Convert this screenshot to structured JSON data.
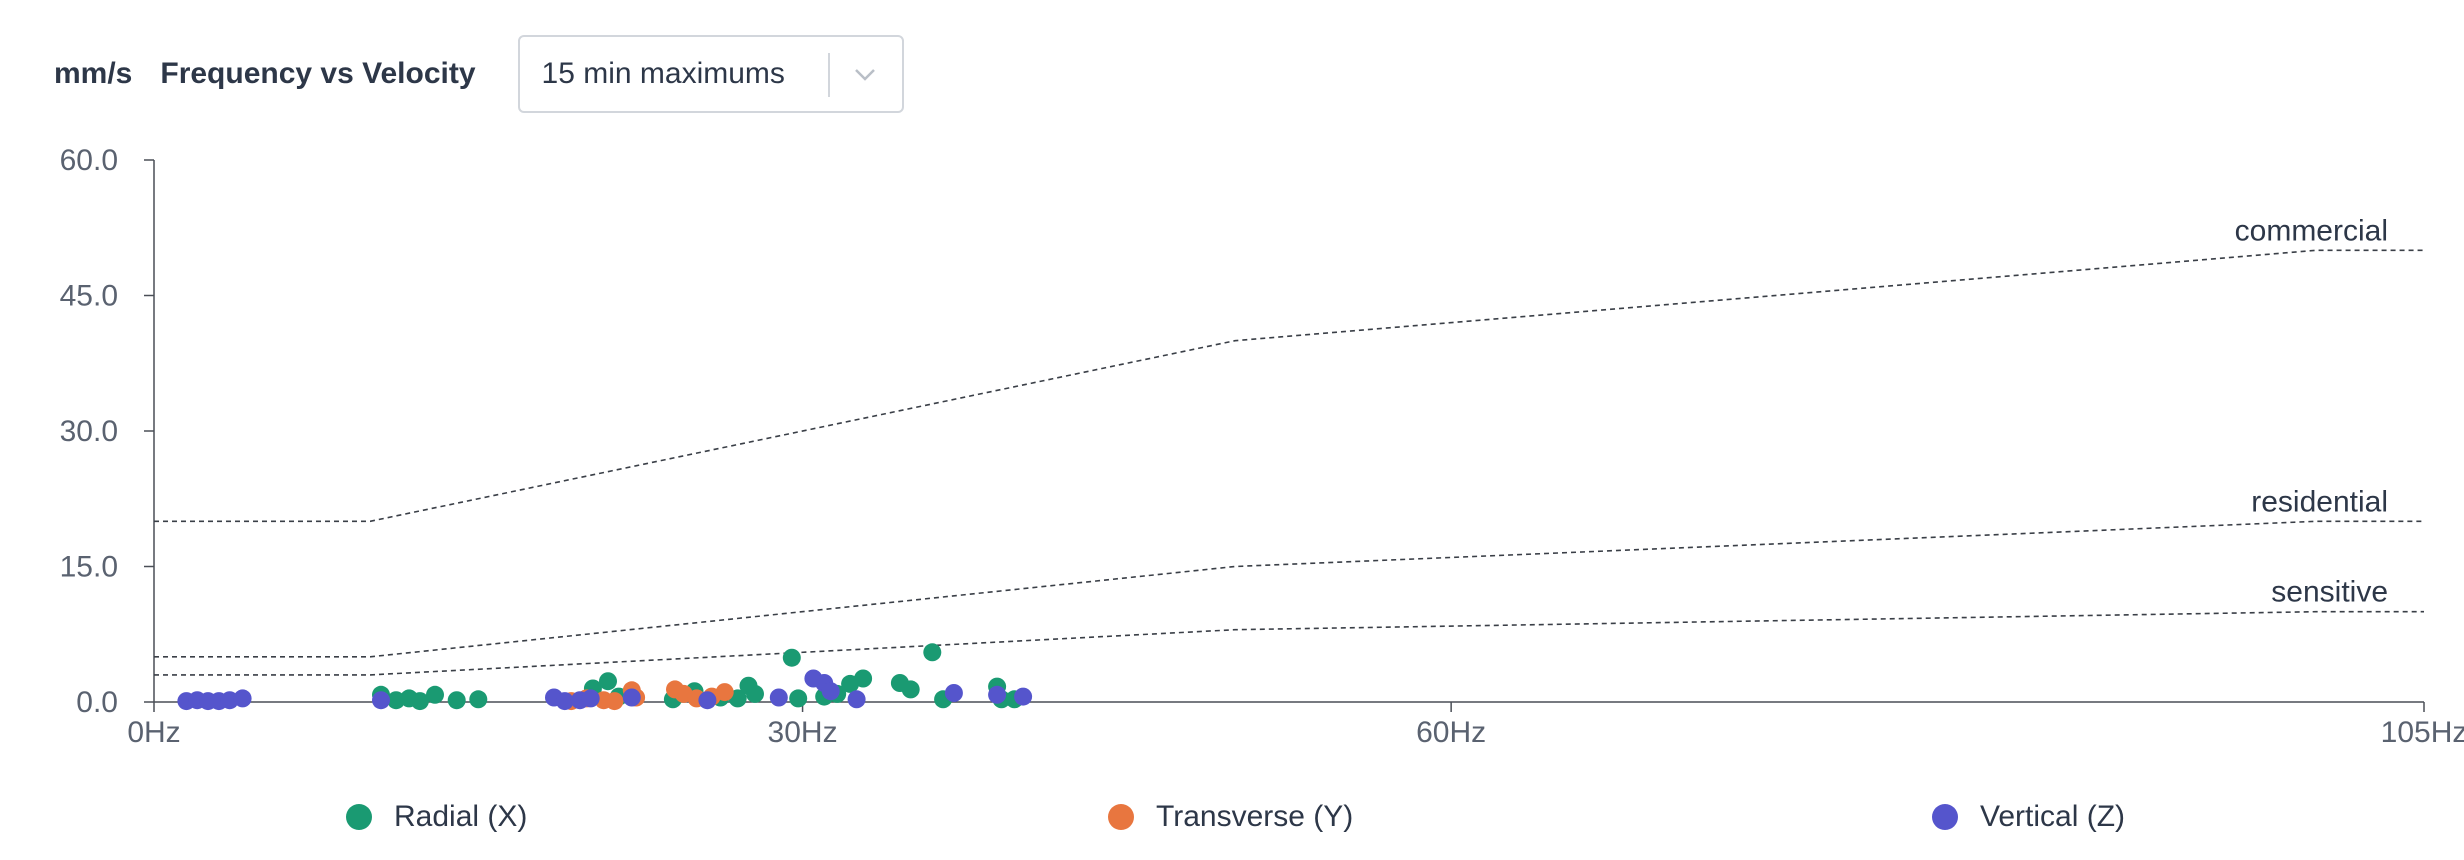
{
  "header": {
    "unit": "mm/s",
    "title": "Frequency vs Velocity",
    "select_value": "15 min maximums",
    "select_icon": "chevron-down-icon"
  },
  "chart_data": {
    "type": "scatter",
    "xlim": [
      0,
      105
    ],
    "ylim": [
      0,
      60
    ],
    "x_ticks": [
      {
        "value": 0,
        "label": "0Hz"
      },
      {
        "value": 30,
        "label": "30Hz"
      },
      {
        "value": 60,
        "label": "60Hz"
      },
      {
        "value": 105,
        "label": "105Hz"
      }
    ],
    "y_ticks": [
      {
        "value": 0,
        "label": "0.0"
      },
      {
        "value": 15,
        "label": "15.0"
      },
      {
        "value": 30,
        "label": "30.0"
      },
      {
        "value": 45,
        "label": "45.0"
      },
      {
        "value": 60,
        "label": "60.0"
      }
    ],
    "grid": false,
    "legend_position": "bottom",
    "thresholds": [
      {
        "label": "commercial",
        "points": [
          [
            0,
            20
          ],
          [
            10,
            20
          ],
          [
            50,
            40
          ],
          [
            100,
            50
          ],
          [
            105,
            50
          ]
        ]
      },
      {
        "label": "residential",
        "points": [
          [
            0,
            5
          ],
          [
            10,
            5
          ],
          [
            50,
            15
          ],
          [
            100,
            20
          ],
          [
            105,
            20
          ]
        ]
      },
      {
        "label": "sensitive",
        "points": [
          [
            0,
            3
          ],
          [
            10,
            3
          ],
          [
            50,
            8
          ],
          [
            100,
            10
          ],
          [
            105,
            10
          ]
        ]
      }
    ],
    "series": [
      {
        "name": "Radial (X)",
        "color": "#1a9a72",
        "points": [
          [
            10.5,
            0.8
          ],
          [
            11.2,
            0.2
          ],
          [
            11.8,
            0.4
          ],
          [
            12.3,
            0.1
          ],
          [
            13,
            0.8
          ],
          [
            14,
            0.2
          ],
          [
            15,
            0.3
          ],
          [
            20.3,
            1.5
          ],
          [
            21,
            2.3
          ],
          [
            21.5,
            0.6
          ],
          [
            24,
            0.3
          ],
          [
            25,
            1.2
          ],
          [
            26.2,
            0.5
          ],
          [
            27,
            0.4
          ],
          [
            27.5,
            1.8
          ],
          [
            27.8,
            0.9
          ],
          [
            29.5,
            4.9
          ],
          [
            29.8,
            0.4
          ],
          [
            31,
            0.6
          ],
          [
            31.6,
            0.9
          ],
          [
            32.2,
            2.0
          ],
          [
            32.8,
            2.6
          ],
          [
            34.5,
            2.1
          ],
          [
            35,
            1.4
          ],
          [
            36,
            5.5
          ],
          [
            36.5,
            0.3
          ],
          [
            39,
            1.7
          ],
          [
            39.2,
            0.3
          ],
          [
            39.8,
            0.3
          ]
        ]
      },
      {
        "name": "Transverse (Y)",
        "color": "#e8763f",
        "points": [
          [
            19.3,
            0.1
          ],
          [
            20,
            0.4
          ],
          [
            20.8,
            0.2
          ],
          [
            21.3,
            0.1
          ],
          [
            22.1,
            1.3
          ],
          [
            22.3,
            0.5
          ],
          [
            24.1,
            1.4
          ],
          [
            24.5,
            0.9
          ],
          [
            25.1,
            0.4
          ],
          [
            25.8,
            0.6
          ],
          [
            26.4,
            1.1
          ]
        ]
      },
      {
        "name": "Vertical (Z)",
        "color": "#5555cc",
        "points": [
          [
            1.5,
            0.1
          ],
          [
            2,
            0.2
          ],
          [
            2.5,
            0.1
          ],
          [
            3,
            0.1
          ],
          [
            3.5,
            0.2
          ],
          [
            4.1,
            0.4
          ],
          [
            10.5,
            0.2
          ],
          [
            18.5,
            0.5
          ],
          [
            19,
            0.1
          ],
          [
            19.7,
            0.2
          ],
          [
            20.2,
            0.4
          ],
          [
            22.1,
            0.5
          ],
          [
            25.6,
            0.2
          ],
          [
            28.9,
            0.5
          ],
          [
            30.5,
            2.6
          ],
          [
            31,
            2.1
          ],
          [
            31.3,
            1.2
          ],
          [
            32.5,
            0.3
          ],
          [
            37,
            1.0
          ],
          [
            39,
            0.8
          ],
          [
            40.2,
            0.6
          ]
        ]
      }
    ]
  }
}
